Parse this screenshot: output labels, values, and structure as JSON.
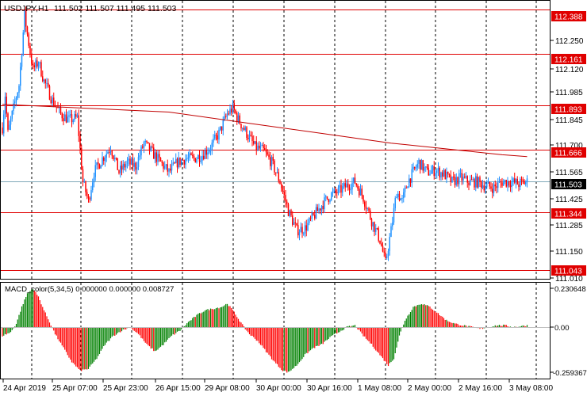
{
  "header": {
    "symbol": "USDJPY,H1",
    "ohlc": "111.502 111.507 111.495 111.503"
  },
  "price_axis": {
    "ticks": [
      "112.250",
      "112.120",
      "111.985",
      "111.845",
      "111.700",
      "111.565",
      "111.425",
      "111.285",
      "111.150",
      "111.010"
    ]
  },
  "levels": [
    {
      "price": 112.388,
      "label": "112.388"
    },
    {
      "price": 112.161,
      "label": "112.161"
    },
    {
      "price": 111.893,
      "label": "111.893"
    },
    {
      "price": 111.666,
      "label": "111.666"
    },
    {
      "price": 111.344,
      "label": "111.344"
    },
    {
      "price": 111.043,
      "label": "111.043"
    }
  ],
  "current_price": {
    "price": 111.503,
    "label": "111.503"
  },
  "macd": {
    "label": "MACD_color(5,34,5) 0.000000 0.000000 0.008727",
    "ticks": [
      "0.230648",
      "0.00",
      "-0.259367"
    ]
  },
  "time_axis": {
    "labels": [
      "24 Apr 2019",
      "25 Apr 07:00",
      "25 Apr 23:00",
      "26 Apr 15:00",
      "29 Apr 08:00",
      "30 Apr 00:00",
      "30 Apr 16:00",
      "1 May 08:00",
      "2 May 00:00",
      "2 May 16:00",
      "3 May 08:00"
    ]
  },
  "colors": {
    "bull": "#1E90FF",
    "bear": "#FF0000",
    "level_line": "#E00000",
    "ma_line": "#C00000",
    "grid": "#000000",
    "macd_up": "#008000",
    "macd_down": "#FF0000",
    "current_line": "#7FA8B8"
  },
  "chart_data": {
    "type": "candlestick",
    "symbol": "USDJPY",
    "timeframe": "H1",
    "ylim": [
      111.0,
      112.43
    ],
    "close_path": [
      [
        0,
        111.78
      ],
      [
        2,
        111.95
      ],
      [
        4,
        111.75
      ],
      [
        8,
        111.88
      ],
      [
        12,
        112.0
      ],
      [
        16,
        112.36
      ],
      [
        18,
        112.26
      ],
      [
        22,
        112.08
      ],
      [
        26,
        112.12
      ],
      [
        30,
        112.02
      ],
      [
        36,
        111.92
      ],
      [
        42,
        111.85
      ],
      [
        48,
        111.82
      ],
      [
        54,
        111.83
      ],
      [
        58,
        111.5
      ],
      [
        62,
        111.4
      ],
      [
        66,
        111.55
      ],
      [
        72,
        111.62
      ],
      [
        78,
        111.68
      ],
      [
        84,
        111.55
      ],
      [
        90,
        111.6
      ],
      [
        96,
        111.58
      ],
      [
        102,
        111.7
      ],
      [
        108,
        111.65
      ],
      [
        114,
        111.6
      ],
      [
        120,
        111.55
      ],
      [
        126,
        111.6
      ],
      [
        132,
        111.62
      ],
      [
        138,
        111.62
      ],
      [
        144,
        111.64
      ],
      [
        150,
        111.68
      ],
      [
        156,
        111.75
      ],
      [
        162,
        111.85
      ],
      [
        166,
        111.88
      ],
      [
        170,
        111.82
      ],
      [
        176,
        111.75
      ],
      [
        182,
        111.68
      ],
      [
        188,
        111.66
      ],
      [
        194,
        111.6
      ],
      [
        200,
        111.5
      ],
      [
        206,
        111.35
      ],
      [
        212,
        111.25
      ],
      [
        218,
        111.26
      ],
      [
        224,
        111.32
      ],
      [
        230,
        111.38
      ],
      [
        236,
        111.43
      ],
      [
        242,
        111.45
      ],
      [
        248,
        111.48
      ],
      [
        254,
        111.5
      ],
      [
        260,
        111.42
      ],
      [
        266,
        111.3
      ],
      [
        272,
        111.2
      ],
      [
        276,
        111.08
      ],
      [
        280,
        111.25
      ],
      [
        284,
        111.45
      ],
      [
        288,
        111.4
      ],
      [
        292,
        111.5
      ],
      [
        296,
        111.55
      ],
      [
        300,
        111.6
      ],
      [
        306,
        111.55
      ],
      [
        312,
        111.56
      ],
      [
        318,
        111.54
      ],
      [
        324,
        111.5
      ],
      [
        330,
        111.52
      ],
      [
        336,
        111.5
      ],
      [
        342,
        111.5
      ],
      [
        348,
        111.48
      ],
      [
        354,
        111.47
      ],
      [
        360,
        111.5
      ],
      [
        366,
        111.5
      ],
      [
        372,
        111.49
      ],
      [
        378,
        111.5
      ]
    ],
    "moving_average": [
      [
        0,
        111.9
      ],
      [
        60,
        111.88
      ],
      [
        120,
        111.86
      ],
      [
        180,
        111.8
      ],
      [
        240,
        111.74
      ],
      [
        280,
        111.7
      ],
      [
        320,
        111.67
      ],
      [
        360,
        111.64
      ],
      [
        378,
        111.63
      ]
    ],
    "macd_histogram": {
      "x_count": 380,
      "ylim": [
        -0.259367,
        0.230648
      ],
      "control": [
        [
          0,
          -0.05
        ],
        [
          6,
          -0.03
        ],
        [
          10,
          0.02
        ],
        [
          14,
          0.12
        ],
        [
          18,
          0.2
        ],
        [
          22,
          0.23
        ],
        [
          26,
          0.18
        ],
        [
          30,
          0.1
        ],
        [
          34,
          0.03
        ],
        [
          38,
          -0.04
        ],
        [
          44,
          -0.12
        ],
        [
          50,
          -0.2
        ],
        [
          56,
          -0.25
        ],
        [
          62,
          -0.24
        ],
        [
          68,
          -0.18
        ],
        [
          74,
          -0.1
        ],
        [
          80,
          -0.05
        ],
        [
          86,
          -0.02
        ],
        [
          92,
          0.0
        ],
        [
          98,
          -0.04
        ],
        [
          104,
          -0.1
        ],
        [
          110,
          -0.14
        ],
        [
          116,
          -0.1
        ],
        [
          122,
          -0.05
        ],
        [
          128,
          -0.02
        ],
        [
          134,
          0.03
        ],
        [
          140,
          0.07
        ],
        [
          146,
          0.1
        ],
        [
          152,
          0.11
        ],
        [
          158,
          0.12
        ],
        [
          162,
          0.14
        ],
        [
          166,
          0.1
        ],
        [
          170,
          0.05
        ],
        [
          174,
          0.0
        ],
        [
          178,
          -0.04
        ],
        [
          184,
          -0.08
        ],
        [
          190,
          -0.14
        ],
        [
          196,
          -0.2
        ],
        [
          202,
          -0.25
        ],
        [
          206,
          -0.26
        ],
        [
          212,
          -0.22
        ],
        [
          218,
          -0.16
        ],
        [
          224,
          -0.12
        ],
        [
          230,
          -0.1
        ],
        [
          236,
          -0.06
        ],
        [
          242,
          -0.03
        ],
        [
          248,
          0.0
        ],
        [
          254,
          0.01
        ],
        [
          260,
          -0.05
        ],
        [
          266,
          -0.1
        ],
        [
          272,
          -0.16
        ],
        [
          278,
          -0.22
        ],
        [
          282,
          -0.18
        ],
        [
          286,
          -0.05
        ],
        [
          290,
          0.04
        ],
        [
          296,
          0.12
        ],
        [
          302,
          0.14
        ],
        [
          308,
          0.12
        ],
        [
          314,
          0.08
        ],
        [
          320,
          0.04
        ],
        [
          326,
          0.02
        ],
        [
          332,
          0.01
        ],
        [
          338,
          0.0
        ],
        [
          344,
          -0.01
        ],
        [
          350,
          0.0
        ],
        [
          356,
          0.01
        ],
        [
          362,
          0.01
        ],
        [
          368,
          0.0
        ],
        [
          378,
          0.01
        ]
      ]
    }
  }
}
